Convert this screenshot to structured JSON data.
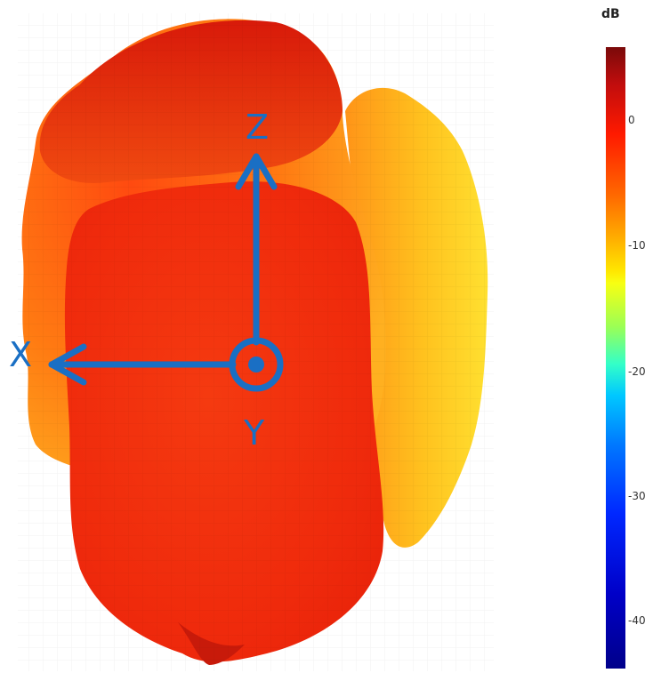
{
  "colorbar": {
    "title": "dB",
    "ticks": [
      "0",
      "-10",
      "-20",
      "-30",
      "-40"
    ]
  },
  "axes": {
    "x_label": "X",
    "y_label": "Y",
    "z_label": "Z"
  },
  "colors": {
    "axis": "#1a6fc4",
    "main_lobe": "#f0300f",
    "side_lobe": "#ff9a1a"
  }
}
